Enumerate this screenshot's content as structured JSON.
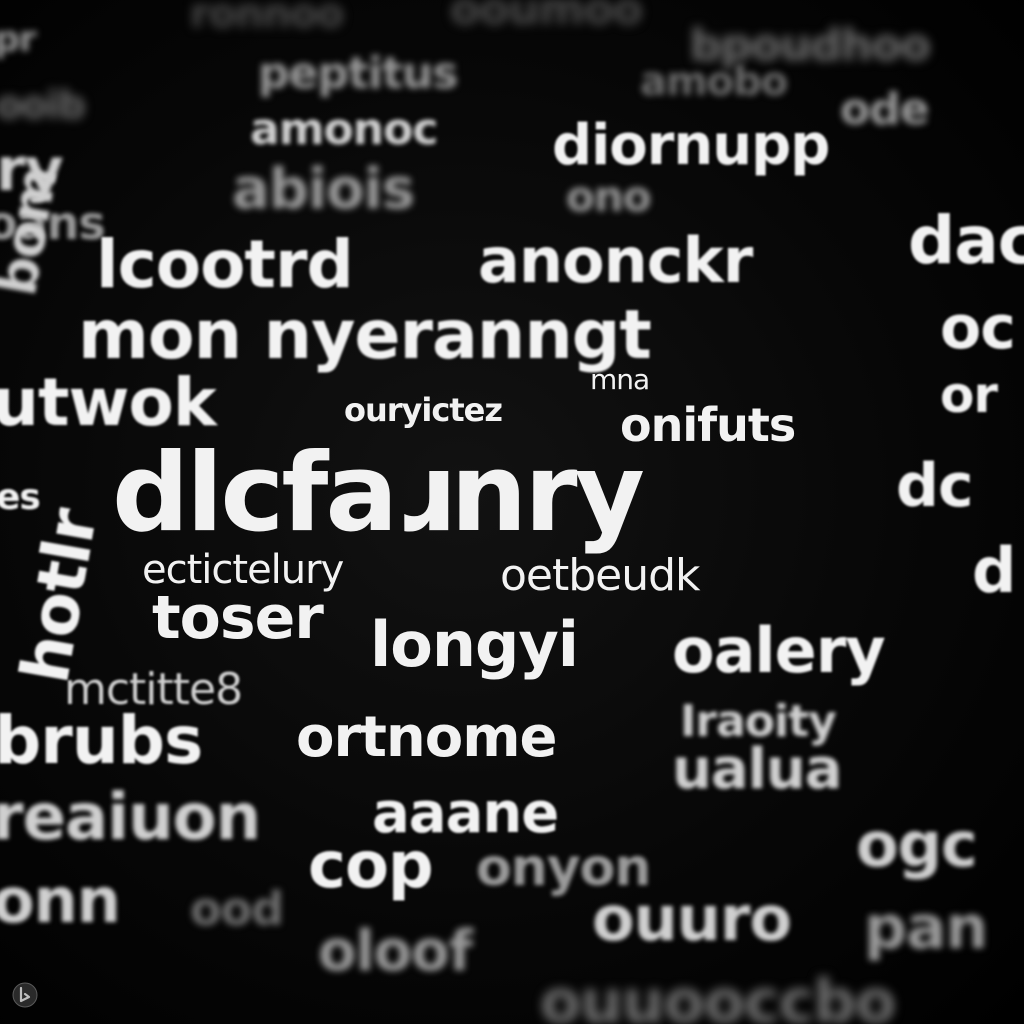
{
  "words": {
    "w_ry": "ry",
    "w_pr": "pr",
    "w_xoans": "oans",
    "w_bom": "bom",
    "w_utwok": "utwok",
    "w_es": "es",
    "w_hotlr": "hotlr",
    "w_mctitle8": "mctitte8",
    "w_brubs": "brubs",
    "w_reaiuon": "reaiuon",
    "w_onn": "onn",
    "w_peptitus": "peptitus",
    "w_amonoc": "amonoc",
    "w_abiois": "abiois",
    "w_lcootrd": "lcootrd",
    "w_mon": "mon nyeranngt",
    "w_ourictez": "ouryictez",
    "w_mna": "mna",
    "w_onifuts": "onifuts",
    "w_dlcfa": "dlcfaɹnry",
    "w_ectlcte": "ectictelury",
    "w_oetbeudk": "oetbeudk",
    "w_toser": "toser",
    "w_longyi": "longyi",
    "w_ortnome": "ortnome",
    "w_aaane": "aaane",
    "w_cop": "cop",
    "w_onyon": "onyon",
    "w_ood": "ood",
    "w_oloof": "oloof",
    "w_dionupp": "diornupp",
    "w_ono": "ono",
    "w_anonckr": "anonckr",
    "w_dac": "dac",
    "w_oc": "oc",
    "w_or": "or",
    "w_dc": "dc",
    "w_dright": "d",
    "w_oalery": "oalery",
    "w_ralty": "Iraoity",
    "w_ualua": "ualua",
    "w_ogc": "ogc",
    "w_ouuro": "ouuro",
    "w_pan": "pan",
    "w_bottom": "ouuooccbo",
    "w_top1": "ronnoo",
    "w_top2": "ooumoo",
    "w_top3": "bpoudhoo",
    "w_mpbe": "amobo",
    "w_ode": "ode",
    "w_ooib": "ooib"
  },
  "watermark_icon": "bing-logo-icon"
}
